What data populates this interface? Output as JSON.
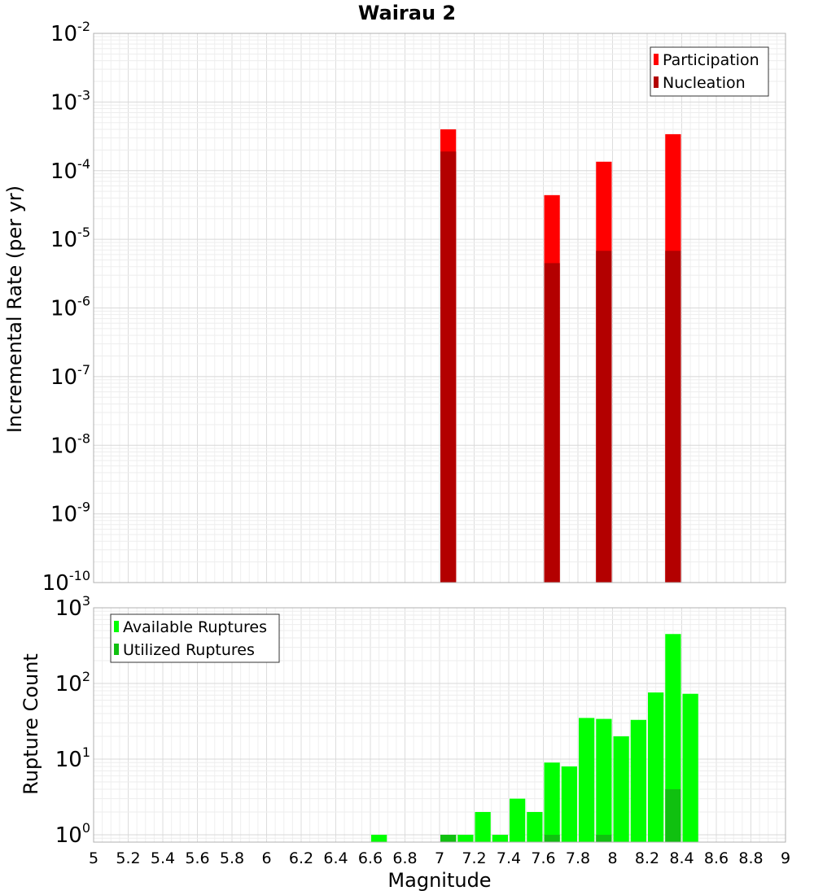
{
  "chart_data": [
    {
      "type": "bar",
      "title": "Wairau 2",
      "ylabel": "Incremental Rate (per yr)",
      "y_scale": "log",
      "ylim": [
        1e-10,
        0.01
      ],
      "y_ticks": [
        {
          "base": "10",
          "exp": "-2",
          "value": 0.01
        },
        {
          "base": "10",
          "exp": "-3",
          "value": 0.001
        },
        {
          "base": "10",
          "exp": "-4",
          "value": 0.0001
        },
        {
          "base": "10",
          "exp": "-5",
          "value": 1e-05
        },
        {
          "base": "10",
          "exp": "-6",
          "value": 1e-06
        },
        {
          "base": "10",
          "exp": "-7",
          "value": 1e-07
        },
        {
          "base": "10",
          "exp": "-8",
          "value": 1e-08
        },
        {
          "base": "10",
          "exp": "-9",
          "value": 1e-09
        },
        {
          "base": "10",
          "exp": "-10",
          "value": 1e-10
        }
      ],
      "xlim": [
        5,
        9
      ],
      "bin_width": 0.1,
      "grid": true,
      "legend_position": "top-right",
      "series": [
        {
          "name": "Participation",
          "color": "#ff0000",
          "x": [
            7.05,
            7.65,
            7.95,
            8.35
          ],
          "values": [
            0.0004,
            4.4e-05,
            0.000135,
            0.00034
          ]
        },
        {
          "name": "Nucleation",
          "color": "#b30000",
          "x": [
            7.05,
            7.65,
            7.95,
            8.35
          ],
          "values": [
            0.00019,
            4.5e-06,
            6.8e-06,
            6.8e-06
          ]
        }
      ]
    },
    {
      "type": "bar",
      "ylabel": "Rupture Count",
      "xlabel": "Magnitude",
      "y_scale": "log",
      "ylim": [
        0.8,
        1000
      ],
      "y_ticks": [
        {
          "base": "10",
          "exp": "3",
          "value": 1000
        },
        {
          "base": "10",
          "exp": "2",
          "value": 100
        },
        {
          "base": "10",
          "exp": "1",
          "value": 10
        },
        {
          "base": "10",
          "exp": "0",
          "value": 1
        }
      ],
      "xlim": [
        5,
        9
      ],
      "x_ticks": [
        "5",
        "5.2",
        "5.4",
        "5.6",
        "5.8",
        "6",
        "6.2",
        "6.4",
        "6.6",
        "6.8",
        "7",
        "7.2",
        "7.4",
        "7.6",
        "7.8",
        "8",
        "8.2",
        "8.4",
        "8.6",
        "8.8",
        "9"
      ],
      "bin_width": 0.1,
      "grid": true,
      "legend_position": "top-left",
      "series": [
        {
          "name": "Available Ruptures",
          "color": "#00ff00",
          "x": [
            6.65,
            7.05,
            7.15,
            7.25,
            7.35,
            7.45,
            7.55,
            7.65,
            7.75,
            7.85,
            7.95,
            8.05,
            8.15,
            8.25,
            8.35,
            8.45
          ],
          "values": [
            1,
            1,
            1,
            2,
            1,
            3,
            2,
            9,
            8,
            35,
            34,
            20,
            33,
            76,
            450,
            73
          ]
        },
        {
          "name": "Utilized Ruptures",
          "color": "#10c010",
          "x": [
            7.05,
            7.65,
            7.95,
            8.35
          ],
          "values": [
            1,
            1,
            1,
            4
          ]
        }
      ]
    }
  ]
}
